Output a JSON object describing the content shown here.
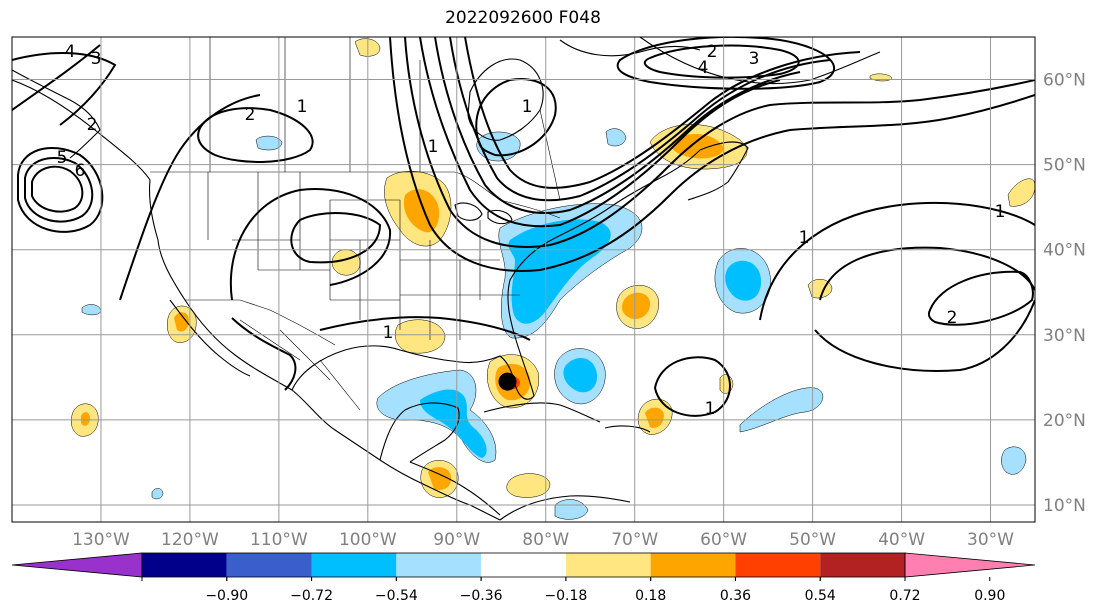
{
  "figure": {
    "title": "2022092600 F048"
  },
  "map": {
    "lon_range": [
      -140,
      -25
    ],
    "lat_range": [
      8,
      65
    ],
    "lon_ticks": [
      {
        "value": -130,
        "label": "130°W"
      },
      {
        "value": -120,
        "label": "120°W"
      },
      {
        "value": -110,
        "label": "110°W"
      },
      {
        "value": -100,
        "label": "100°W"
      },
      {
        "value": -90,
        "label": "90°W"
      },
      {
        "value": -80,
        "label": "80°W"
      },
      {
        "value": -70,
        "label": "70°W"
      },
      {
        "value": -60,
        "label": "60°W"
      },
      {
        "value": -50,
        "label": "50°W"
      },
      {
        "value": -40,
        "label": "40°W"
      },
      {
        "value": -30,
        "label": "30°W"
      }
    ],
    "lat_ticks": [
      {
        "value": 60,
        "label": "60°N"
      },
      {
        "value": 50,
        "label": "50°N"
      },
      {
        "value": 40,
        "label": "40°N"
      },
      {
        "value": 30,
        "label": "30°N"
      },
      {
        "value": 20,
        "label": "20°N"
      },
      {
        "value": 10,
        "label": "10°N"
      }
    ],
    "contour_labels": [
      "4",
      "3",
      "2",
      "1",
      "5",
      "6",
      "2",
      "1",
      "4",
      "3",
      "2",
      "1",
      "1",
      "2",
      "1",
      "1",
      "1"
    ],
    "storm_marker": {
      "lon": -84.3,
      "lat": 24.5,
      "color": "#000000"
    },
    "projection": "PlateCarree",
    "grid": true
  },
  "colorbar": {
    "levels": [
      "−0.90",
      "−0.72",
      "−0.54",
      "−0.36",
      "−0.18",
      "0.18",
      "0.36",
      "0.54",
      "0.72",
      "0.90"
    ],
    "colors": [
      "#9932cc",
      "#00008b",
      "#3a5fcd",
      "#00bfff",
      "#a6e0ff",
      "#ffffff",
      "#ffe680",
      "#ffa500",
      "#ff4000",
      "#b22222",
      "#ff7fb0"
    ],
    "extend": "both"
  }
}
